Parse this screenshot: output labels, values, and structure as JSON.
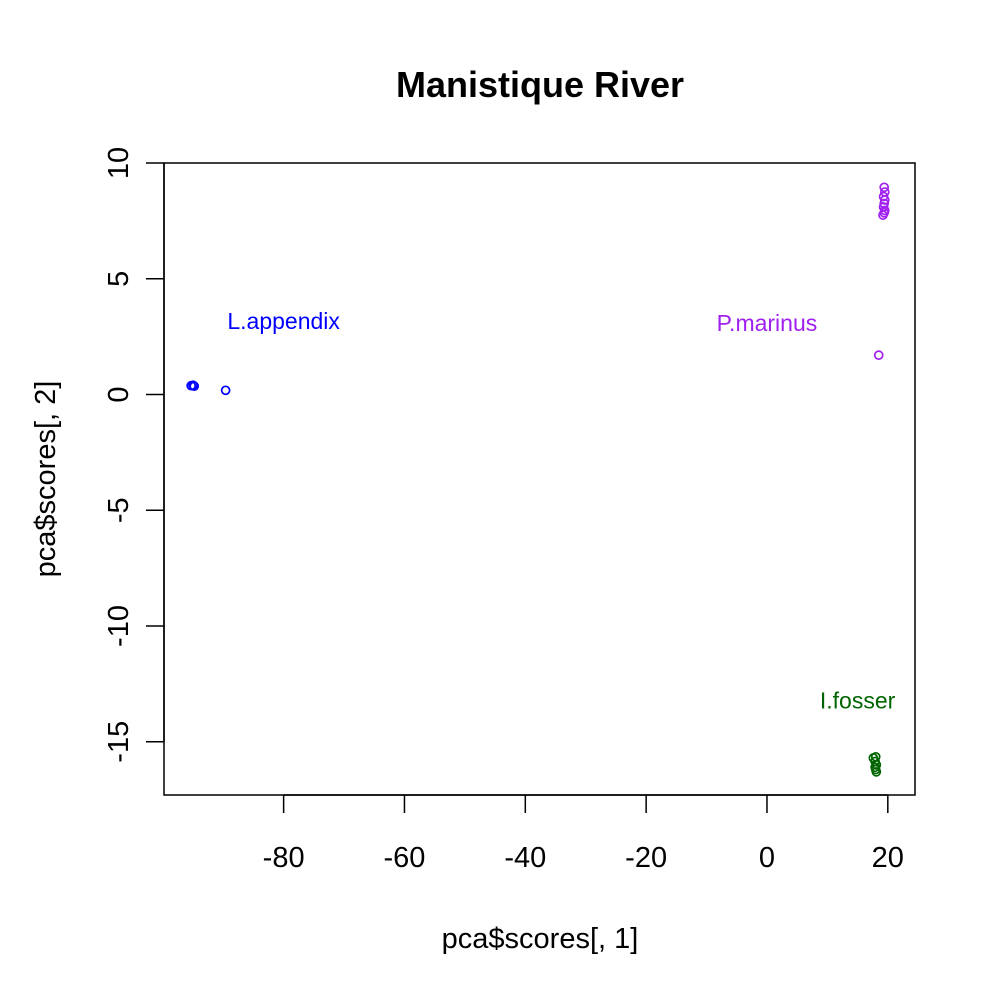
{
  "chart_data": {
    "type": "scatter",
    "title": "Manistique River",
    "xlabel": "pca$scores[, 1]",
    "ylabel": "pca$scores[, 2]",
    "xlim": [
      -99.8,
      24.5
    ],
    "ylim": [
      -17.3,
      10.0
    ],
    "xticks": [
      -80,
      -60,
      -40,
      -20,
      0,
      20
    ],
    "yticks": [
      -15,
      -10,
      -5,
      0,
      5,
      10
    ],
    "grid": false,
    "point_marker": "open circle",
    "series": [
      {
        "name": "L.appendix",
        "color": "#0000ff",
        "points": [
          {
            "x": -95.3,
            "y": 0.38
          },
          {
            "x": -95.0,
            "y": 0.4
          },
          {
            "x": -94.8,
            "y": 0.36
          },
          {
            "x": -89.6,
            "y": 0.18
          }
        ]
      },
      {
        "name": "P.marinus",
        "color": "#a020f0",
        "points": [
          {
            "x": 19.4,
            "y": 8.95
          },
          {
            "x": 19.5,
            "y": 8.75
          },
          {
            "x": 19.3,
            "y": 8.55
          },
          {
            "x": 19.5,
            "y": 8.4
          },
          {
            "x": 19.4,
            "y": 8.25
          },
          {
            "x": 19.3,
            "y": 8.1
          },
          {
            "x": 19.5,
            "y": 7.95
          },
          {
            "x": 19.4,
            "y": 7.85
          },
          {
            "x": 19.2,
            "y": 7.75
          },
          {
            "x": 18.5,
            "y": 1.7
          }
        ]
      },
      {
        "name": "I.fosser",
        "color": "#006400",
        "points": [
          {
            "x": 17.6,
            "y": -15.7
          },
          {
            "x": 18.0,
            "y": -15.65
          },
          {
            "x": 17.9,
            "y": -15.85
          },
          {
            "x": 18.1,
            "y": -16.0
          },
          {
            "x": 17.9,
            "y": -16.1
          },
          {
            "x": 18.0,
            "y": -16.2
          },
          {
            "x": 18.1,
            "y": -16.3
          }
        ]
      }
    ],
    "annotations": [
      {
        "text": "L.appendix",
        "x": -80.0,
        "y": 3.1,
        "color": "#0000ff"
      },
      {
        "text": "P.marinus",
        "x": 0.0,
        "y": 3.0,
        "color": "#a020f0"
      },
      {
        "text": "I.fosser",
        "x": 15.0,
        "y": -13.3,
        "color": "#006400"
      }
    ]
  }
}
